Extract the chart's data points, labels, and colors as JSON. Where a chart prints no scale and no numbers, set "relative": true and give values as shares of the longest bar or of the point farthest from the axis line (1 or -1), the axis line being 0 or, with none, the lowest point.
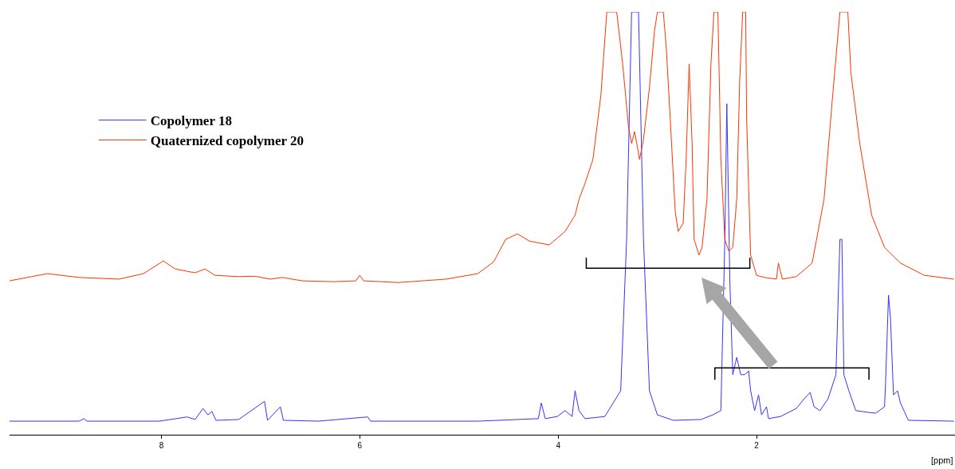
{
  "chart_data": {
    "type": "line",
    "relative": true,
    "xlabel": "[ppm]",
    "xlim": [
      9.53,
      0
    ],
    "xticks": [
      8,
      6,
      4,
      2
    ],
    "grid": false,
    "legend": "left",
    "marker": "none",
    "line_style": "solid",
    "tick_labels": "x",
    "series": [
      {
        "name": "Copolymer 18",
        "color": "#3333ff",
        "x": [
          9.53,
          8.83,
          8.78,
          8.75,
          8.02,
          7.74,
          7.66,
          7.58,
          7.53,
          7.49,
          7.45,
          7.22,
          6.96,
          6.93,
          6.8,
          6.77,
          6.42,
          5.92,
          5.89,
          4.81,
          4.2,
          4.17,
          4.13,
          4.01,
          3.93,
          3.86,
          3.83,
          3.79,
          3.73,
          3.53,
          3.37,
          3.31,
          3.26,
          3.19,
          3.14,
          3.08,
          3.0,
          2.84,
          2.56,
          2.44,
          2.36,
          2.32,
          2.3,
          2.27,
          2.24,
          2.2,
          2.16,
          2.12,
          2.08,
          2.06,
          2.02,
          1.98,
          1.95,
          1.9,
          1.88,
          1.76,
          1.6,
          1.52,
          1.46,
          1.42,
          1.36,
          1.28,
          1.2,
          1.16,
          1.14,
          1.12,
          1.07,
          1.0,
          0.88,
          0.8,
          0.71,
          0.7,
          0.67,
          0.65,
          0.62,
          0.58,
          0.55,
          0.47,
          0.01
        ],
        "values": [
          0.032,
          0.032,
          0.038,
          0.032,
          0.032,
          0.042,
          0.036,
          0.062,
          0.047,
          0.055,
          0.034,
          0.036,
          0.079,
          0.034,
          0.066,
          0.034,
          0.032,
          0.042,
          0.032,
          0.032,
          0.038,
          0.075,
          0.038,
          0.043,
          0.057,
          0.043,
          0.104,
          0.057,
          0.038,
          0.043,
          0.104,
          0.462,
          1,
          1,
          0.462,
          0.104,
          0.047,
          0.034,
          0.036,
          0.047,
          0.057,
          0.462,
          0.783,
          0.368,
          0.142,
          0.183,
          0.142,
          0.142,
          0.151,
          0.104,
          0.057,
          0.094,
          0.047,
          0.066,
          0.038,
          0.043,
          0.062,
          0.085,
          0.1,
          0.066,
          0.057,
          0.085,
          0.142,
          0.462,
          0.462,
          0.142,
          0.104,
          0.057,
          0.053,
          0.051,
          0.066,
          0.123,
          0.33,
          0.274,
          0.094,
          0.104,
          0.075,
          0.034,
          0.032
        ]
      },
      {
        "name": "Quaternized copolymer 20",
        "color": "#ff3300",
        "x": [
          9.53,
          9.15,
          8.83,
          8.43,
          8.18,
          7.98,
          7.86,
          7.66,
          7.56,
          7.46,
          7.22,
          7.06,
          6.9,
          6.78,
          6.58,
          6.26,
          6.04,
          6.0,
          5.96,
          5.61,
          5.13,
          4.81,
          4.65,
          4.53,
          4.41,
          4.29,
          4.09,
          3.93,
          3.83,
          3.79,
          3.73,
          3.65,
          3.57,
          3.51,
          3.41,
          3.35,
          3.29,
          3.26,
          3.23,
          3.2,
          3.18,
          3.14,
          3.08,
          3.03,
          3.0,
          2.94,
          2.91,
          2.87,
          2.82,
          2.79,
          2.74,
          2.71,
          2.68,
          2.65,
          2.63,
          2.58,
          2.55,
          2.5,
          2.46,
          2.43,
          2.39,
          2.36,
          2.32,
          2.28,
          2.24,
          2.2,
          2.17,
          2.14,
          2.11,
          2.1,
          2.06,
          2.0,
          1.92,
          1.8,
          1.78,
          1.74,
          1.6,
          1.44,
          1.32,
          1.24,
          1.16,
          1.08,
          1.05,
          1.02,
          0.96,
          0.84,
          0.71,
          0.55,
          0.31,
          0.01
        ],
        "values": [
          0.364,
          0.381,
          0.372,
          0.368,
          0.381,
          0.411,
          0.392,
          0.383,
          0.392,
          0.377,
          0.374,
          0.375,
          0.368,
          0.372,
          0.364,
          0.362,
          0.364,
          0.377,
          0.364,
          0.36,
          0.368,
          0.381,
          0.409,
          0.462,
          0.475,
          0.458,
          0.449,
          0.481,
          0.519,
          0.557,
          0.594,
          0.651,
          0.802,
          1,
          1,
          0.877,
          0.726,
          0.689,
          0.717,
          0.679,
          0.651,
          0.698,
          0.821,
          0.953,
          1,
          1,
          0.915,
          0.745,
          0.528,
          0.481,
          0.5,
          0.651,
          0.877,
          0.689,
          0.462,
          0.425,
          0.443,
          0.557,
          0.877,
          1,
          1,
          0.651,
          0.462,
          0.434,
          0.443,
          0.557,
          0.84,
          1,
          1,
          0.745,
          0.425,
          0.377,
          0.372,
          0.368,
          0.406,
          0.368,
          0.374,
          0.406,
          0.557,
          0.783,
          1,
          1,
          0.858,
          0.802,
          0.689,
          0.519,
          0.443,
          0.406,
          0.377,
          0.368
        ]
      }
    ]
  }
}
